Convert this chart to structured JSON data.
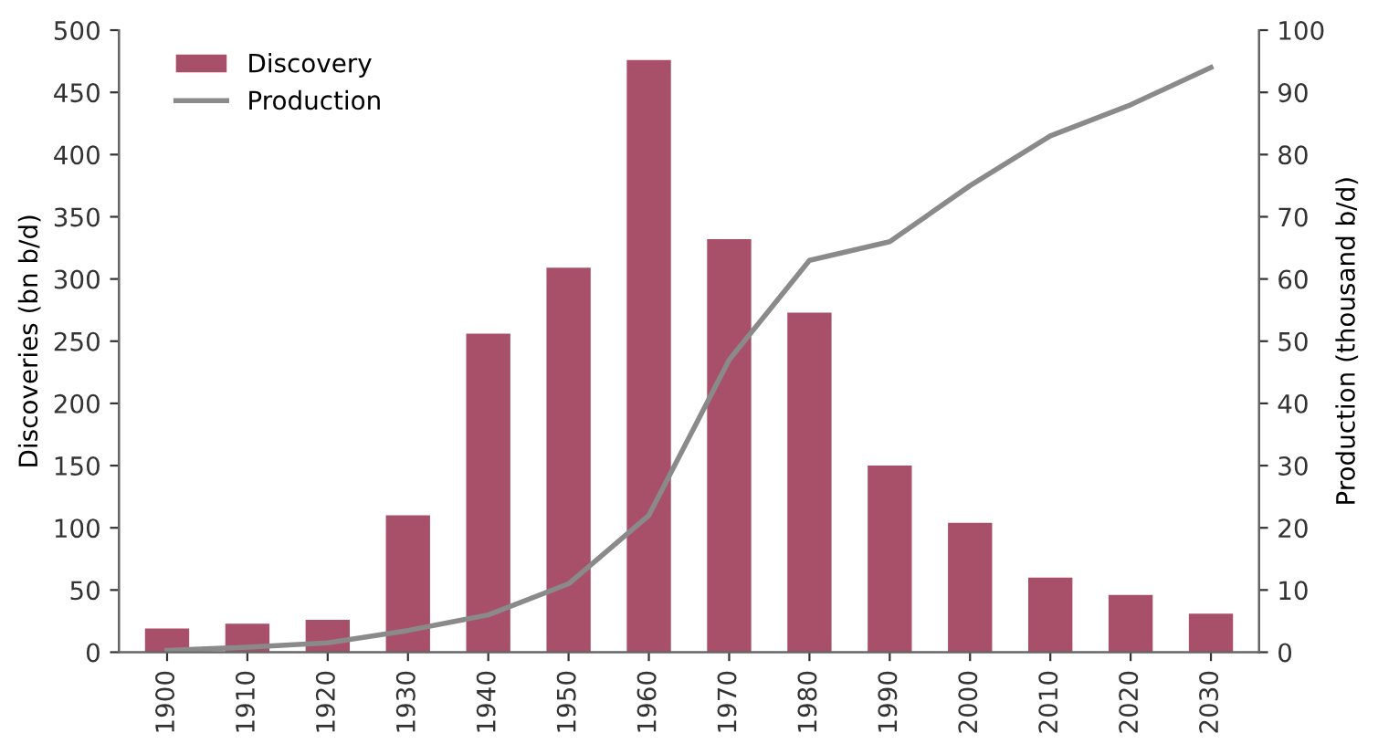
{
  "chart_data": {
    "type": "bar",
    "categories": [
      "1900",
      "1910",
      "1920",
      "1930",
      "1940",
      "1950",
      "1960",
      "1970",
      "1980",
      "1990",
      "2000",
      "2010",
      "2020",
      "2030"
    ],
    "ylabel": "Discoveries (bn b/d)",
    "y2label": "Production (thousand b/d)",
    "series": [
      {
        "name": "Discovery",
        "color": "#a8506a",
        "values": [
          19,
          23,
          26,
          110,
          256,
          309,
          476,
          332,
          273,
          150,
          104,
          60,
          46,
          31
        ]
      },
      {
        "name": "Production",
        "type": "line",
        "axis": "y2",
        "color": "#8a8a8a",
        "values": [
          0.3,
          0.8,
          1.5,
          3.5,
          6,
          11,
          22,
          47,
          63,
          66,
          75,
          83,
          88,
          94
        ]
      }
    ],
    "ylim": [
      0,
      500
    ],
    "yticks": [
      0,
      50,
      100,
      150,
      200,
      250,
      300,
      350,
      400,
      450,
      500
    ],
    "y2lim": [
      0,
      100
    ],
    "y2ticks": [
      0,
      10,
      20,
      30,
      40,
      50,
      60,
      70,
      80,
      90,
      100
    ],
    "grid": false,
    "legend": "top left"
  }
}
